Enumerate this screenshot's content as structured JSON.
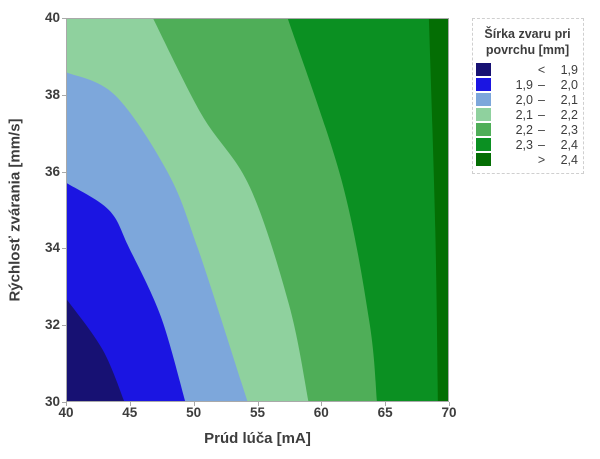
{
  "chart_data": {
    "type": "heatmap",
    "subtype": "filled-contour-bands",
    "title": "",
    "xlabel": "Prúd lúča [mA]",
    "ylabel": "Rýchlosť zvárania [mm/s]",
    "xlim": [
      40,
      70
    ],
    "ylim": [
      30,
      40
    ],
    "xticks": [
      40,
      45,
      50,
      55,
      60,
      65,
      70
    ],
    "yticks": [
      30,
      32,
      34,
      36,
      38,
      40
    ],
    "grid": false,
    "legend_position": "right",
    "legend": {
      "title_line1": "Šírka zvaru pri",
      "title_line2": "povrchu [mm]",
      "entries": [
        {
          "lower": "",
          "sep": "<",
          "upper": "1,9",
          "color": "#171173"
        },
        {
          "lower": "1,9",
          "sep": "–",
          "upper": "2,0",
          "color": "#1b15e2"
        },
        {
          "lower": "2,0",
          "sep": "–",
          "upper": "2,1",
          "color": "#7da7db"
        },
        {
          "lower": "2,1",
          "sep": "–",
          "upper": "2,2",
          "color": "#8fd19e"
        },
        {
          "lower": "2,2",
          "sep": "–",
          "upper": "2,3",
          "color": "#4fae58"
        },
        {
          "lower": "2,3",
          "sep": "–",
          "upper": "2,4",
          "color": "#0b9022"
        },
        {
          "lower": "",
          "sep": ">",
          "upper": "2,4",
          "color": "#046e04"
        }
      ]
    },
    "base_fill_color": "#046e04",
    "contour_lines": [
      {
        "level": 2.4,
        "fill_below": "#0b9022",
        "points": [
          [
            68.5,
            40
          ],
          [
            69.0,
            34.5
          ],
          [
            69.2,
            30
          ]
        ]
      },
      {
        "level": 2.3,
        "fill_below": "#4fae58",
        "points": [
          [
            57.4,
            40
          ],
          [
            61.6,
            35.8
          ],
          [
            63.8,
            32.1
          ],
          [
            64.4,
            30
          ]
        ]
      },
      {
        "level": 2.2,
        "fill_below": "#8fd19e",
        "points": [
          [
            46.8,
            40
          ],
          [
            50.6,
            37.5
          ],
          [
            54.4,
            35.6
          ],
          [
            57.5,
            32.5
          ],
          [
            59.0,
            30
          ]
        ]
      },
      {
        "level": 2.1,
        "fill_below": "#7da7db",
        "points": [
          [
            40,
            38.6
          ],
          [
            43.8,
            38.0
          ],
          [
            47.9,
            36.0
          ],
          [
            50.3,
            34.0
          ],
          [
            54.2,
            30
          ]
        ]
      },
      {
        "level": 2.0,
        "fill_below": "#1b15e2",
        "points": [
          [
            40,
            35.7
          ],
          [
            43.3,
            35.0
          ],
          [
            44.9,
            34.0
          ],
          [
            47.4,
            32.2
          ],
          [
            49.3,
            30
          ]
        ]
      },
      {
        "level": 1.9,
        "fill_below": "#171173",
        "points": [
          [
            40,
            32.65
          ],
          [
            42.8,
            31.35
          ],
          [
            44.5,
            30
          ]
        ]
      }
    ],
    "colors": {
      "axis_line": "#a9a9a9",
      "text": "#3d3d3d",
      "legend_border": "#cfcfcf",
      "background": "#ffffff"
    }
  }
}
